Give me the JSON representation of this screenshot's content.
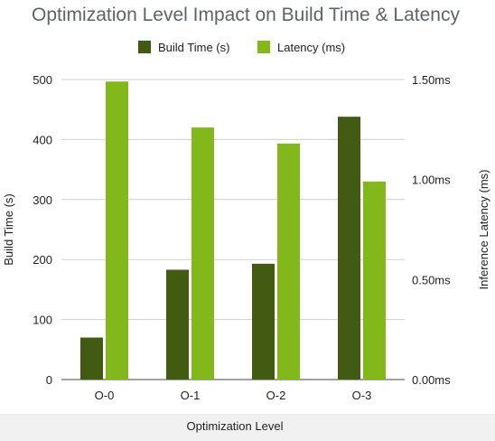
{
  "colors": {
    "build_time": "#435a12",
    "latency": "#83b81a",
    "title": "#5f6368"
  },
  "chart_data": {
    "type": "bar",
    "title": "Optimization Level Impact on Build Time & Latency",
    "xlabel": "Optimization Level",
    "ylabel": "Build Time (s)",
    "y2label": "Inference Latency (ms)",
    "categories": [
      "O-0",
      "O-1",
      "O-2",
      "O-3"
    ],
    "ylim": [
      0,
      500
    ],
    "y2lim": [
      0,
      1.5
    ],
    "yticks": [
      "0",
      "100",
      "200",
      "300",
      "400",
      "500"
    ],
    "y2ticks": [
      "0.00ms",
      "0.50ms",
      "1.00ms",
      "1.50ms"
    ],
    "legend_position": "top",
    "grid": true,
    "series": [
      {
        "name": "Build Time (s)",
        "axis": "left",
        "values": [
          70,
          183,
          193,
          438
        ]
      },
      {
        "name": "Latency (ms)",
        "axis": "right",
        "values": [
          1.49,
          1.26,
          1.18,
          0.99
        ]
      }
    ]
  }
}
